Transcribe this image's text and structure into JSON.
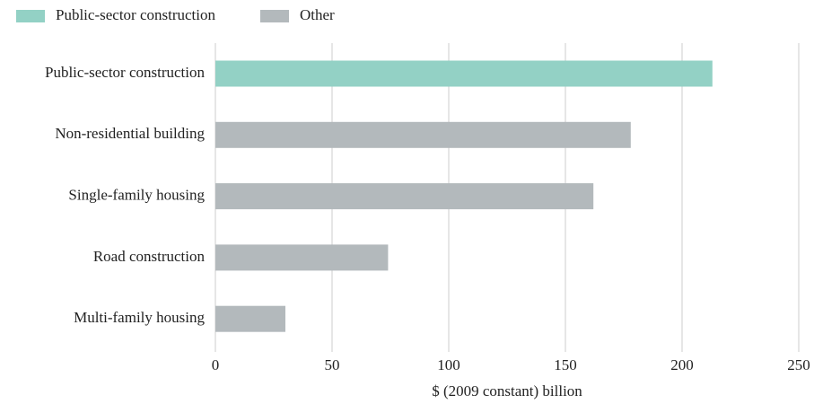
{
  "chart_data": {
    "type": "hbar",
    "categories": [
      "Public-sector construction",
      "Non-residential building",
      "Single-family housing",
      "Road construction",
      "Multi-family housing"
    ],
    "series": [
      {
        "name": "Public-sector construction",
        "color": "#93d1c5",
        "values": [
          213,
          null,
          null,
          null,
          null
        ]
      },
      {
        "name": "Other",
        "color": "#b3b9bc",
        "values": [
          null,
          178,
          162,
          74,
          30
        ]
      }
    ],
    "xlabel": "$ (2009 constant) billion",
    "xlim": [
      0,
      250
    ],
    "xticks": [
      0,
      50,
      100,
      150,
      200,
      250
    ],
    "grid": true,
    "legend": "top-left"
  }
}
